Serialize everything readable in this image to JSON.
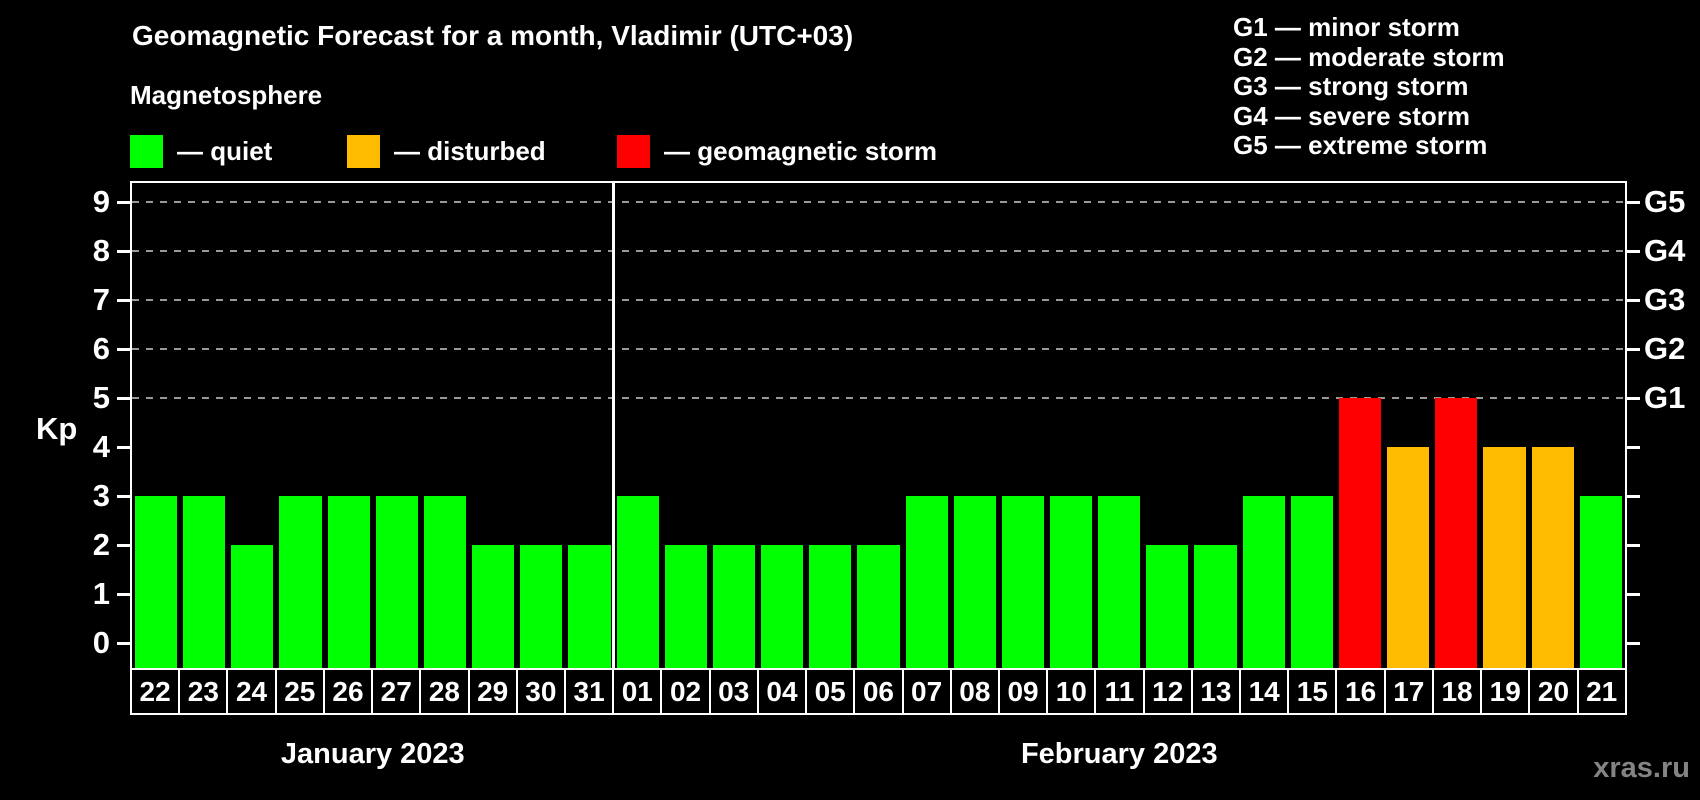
{
  "title": "Geomagnetic Forecast for a month, Vladimir (UTC+03)",
  "subtitle": "Magnetosphere",
  "legend": [
    {
      "key": "quiet",
      "label": "— quiet",
      "color": "#00ff00"
    },
    {
      "key": "disturbed",
      "label": "— disturbed",
      "color": "#ffbb00"
    },
    {
      "key": "storm",
      "label": "— geomagnetic storm",
      "color": "#ff0000"
    }
  ],
  "storm_scale_legend": [
    "G1 — minor storm",
    "G2 — moderate storm",
    "G3 — strong storm",
    "G4 — severe storm",
    "G5 — extreme storm"
  ],
  "watermark": "xras.ru",
  "colors": {
    "background": "#000000",
    "quiet": "#00ff00",
    "disturbed": "#ffbb00",
    "storm": "#ff0000",
    "axis": "#ffffff",
    "grid": "#999999",
    "text": "#ffffff",
    "watermark": "#848484"
  },
  "chart_data": {
    "type": "bar",
    "title": "Geomagnetic Forecast for a month, Vladimir (UTC+03)",
    "xlabel": "",
    "ylabel": "Kp",
    "ylim": [
      0,
      9
    ],
    "grid": "dashed horizontal lines at Kp 5-9 only",
    "y_ticks": [
      0,
      1,
      2,
      3,
      4,
      5,
      6,
      7,
      8,
      9
    ],
    "right_axis_labels": [
      {
        "kp": 5,
        "label": "G1"
      },
      {
        "kp": 6,
        "label": "G2"
      },
      {
        "kp": 7,
        "label": "G3"
      },
      {
        "kp": 8,
        "label": "G4"
      },
      {
        "kp": 9,
        "label": "G5"
      }
    ],
    "gridlines_at": [
      5,
      6,
      7,
      8,
      9
    ],
    "months": [
      {
        "label": "January 2023",
        "start_index": 0,
        "days": 10
      },
      {
        "label": "February 2023",
        "start_index": 10,
        "days": 21
      }
    ],
    "categories": [
      "22",
      "23",
      "24",
      "25",
      "26",
      "27",
      "28",
      "29",
      "30",
      "31",
      "01",
      "02",
      "03",
      "04",
      "05",
      "06",
      "07",
      "08",
      "09",
      "10",
      "11",
      "12",
      "13",
      "14",
      "15",
      "16",
      "17",
      "18",
      "19",
      "20",
      "21"
    ],
    "values": [
      3,
      3,
      2,
      3,
      3,
      3,
      3,
      2,
      2,
      2,
      3,
      2,
      2,
      2,
      2,
      2,
      3,
      3,
      3,
      3,
      3,
      2,
      2,
      3,
      3,
      5,
      4,
      5,
      4,
      4,
      3
    ],
    "statuses": [
      "quiet",
      "quiet",
      "quiet",
      "quiet",
      "quiet",
      "quiet",
      "quiet",
      "quiet",
      "quiet",
      "quiet",
      "quiet",
      "quiet",
      "quiet",
      "quiet",
      "quiet",
      "quiet",
      "quiet",
      "quiet",
      "quiet",
      "quiet",
      "quiet",
      "quiet",
      "quiet",
      "quiet",
      "quiet",
      "storm",
      "disturbed",
      "storm",
      "disturbed",
      "disturbed",
      "quiet"
    ]
  }
}
